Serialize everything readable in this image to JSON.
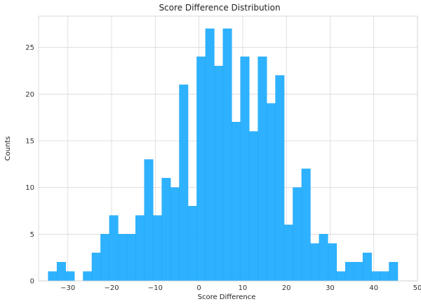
{
  "chart_data": {
    "type": "bar",
    "title": "Score Difference Distribution",
    "xlabel": "Score Difference",
    "ylabel": "Counts",
    "xlim": [
      -36.7,
      50.0
    ],
    "ylim": [
      0,
      28.35
    ],
    "xticks": [
      -30,
      -20,
      -10,
      0,
      10,
      20,
      30,
      40,
      50
    ],
    "yticks": [
      0,
      5,
      10,
      15,
      20,
      25
    ],
    "grid": true,
    "bar_color": "#2EB2FF",
    "bin_width": 2.0,
    "bin_start": -34.5,
    "values": [
      1,
      2,
      1,
      0,
      1,
      3,
      5,
      7,
      5,
      5,
      7,
      13,
      7,
      11,
      10,
      21,
      8,
      24,
      27,
      23,
      27,
      17,
      24,
      16,
      24,
      19,
      22,
      6,
      10,
      12,
      4,
      5,
      4,
      1,
      2,
      2,
      3,
      1,
      1,
      2
    ]
  }
}
